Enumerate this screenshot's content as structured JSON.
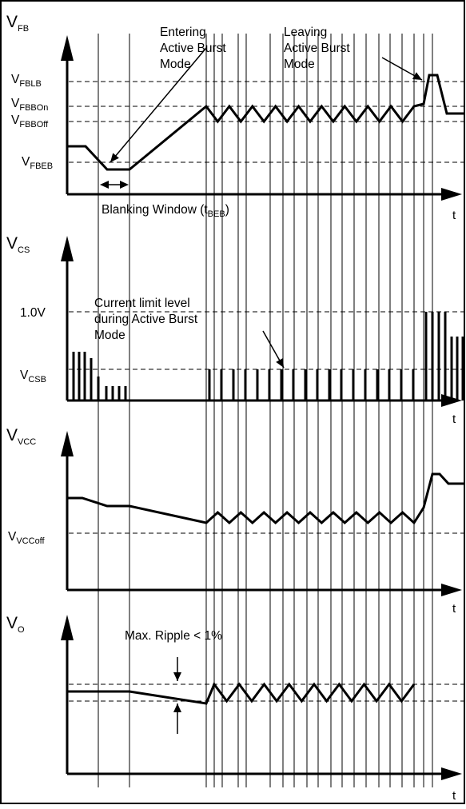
{
  "panels": [
    {
      "symbol": "V",
      "subscript": "FB",
      "levels": [
        {
          "main": "V",
          "sub": "FBLB"
        },
        {
          "main": "V",
          "sub": "FBBOn"
        },
        {
          "main": "V",
          "sub": "FBBOff"
        },
        {
          "main": "V",
          "sub": "FBEB"
        }
      ],
      "axis_label": "t"
    },
    {
      "symbol": "V",
      "subscript": "CS",
      "levels": [
        {
          "main": "1.0V",
          "sub": ""
        },
        {
          "main": "V",
          "sub": "CSB"
        }
      ],
      "axis_label": "t"
    },
    {
      "symbol": "V",
      "subscript": "VCC",
      "levels": [
        {
          "main": "V",
          "sub": "VCCoff"
        }
      ],
      "axis_label": "t"
    },
    {
      "symbol": "V",
      "subscript": "O",
      "levels": [],
      "axis_label": "t"
    }
  ],
  "annotations": {
    "entering": [
      "Entering",
      "Active Burst",
      "Mode"
    ],
    "leaving": [
      "Leaving",
      "Active Burst",
      "Mode"
    ],
    "blanking": {
      "text": "Blanking Window (t",
      "sub": "BEB",
      "close": ")"
    },
    "current_limit": [
      "Current limit level",
      "during Active Burst",
      "Mode"
    ],
    "ripple": "Max. Ripple < 1%"
  }
}
